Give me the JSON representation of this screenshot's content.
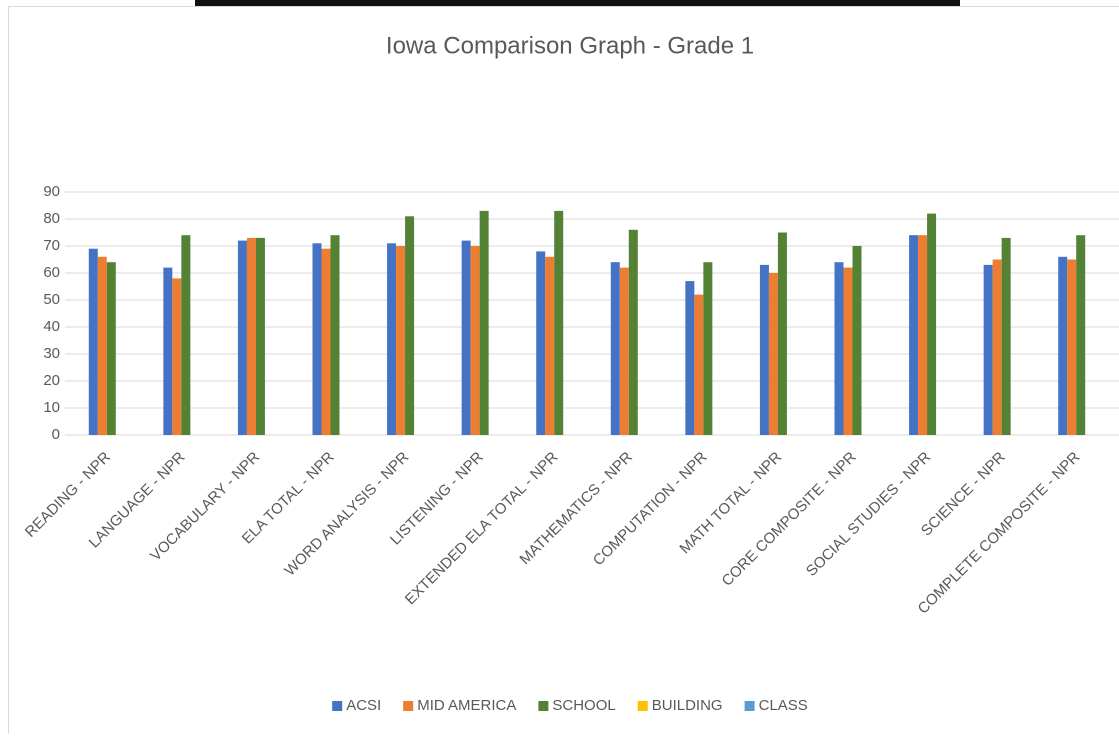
{
  "chart_data": {
    "type": "bar",
    "title": "Iowa Comparison Graph - Grade 1",
    "categories": [
      "READING - NPR",
      "LANGUAGE - NPR",
      "VOCABULARY - NPR",
      "ELA TOTAL - NPR",
      "WORD ANALYSIS - NPR",
      "LISTENING - NPR",
      "EXTENDED ELA TOTAL - NPR",
      "MATHEMATICS - NPR",
      "COMPUTATION - NPR",
      "MATH TOTAL - NPR",
      "CORE COMPOSITE - NPR",
      "SOCIAL STUDIES - NPR",
      "SCIENCE - NPR",
      "COMPLETE COMPOSITE - NPR"
    ],
    "series": [
      {
        "name": "ACSI",
        "color": "#4472c4",
        "values": [
          69,
          62,
          72,
          71,
          71,
          72,
          68,
          64,
          57,
          63,
          64,
          74,
          63,
          66
        ]
      },
      {
        "name": "MID AMERICA",
        "color": "#ed7d31",
        "values": [
          66,
          58,
          73,
          69,
          70,
          70,
          66,
          62,
          52,
          60,
          62,
          74,
          65,
          65
        ]
      },
      {
        "name": "SCHOOL",
        "color": "#548235",
        "values": [
          64,
          74,
          73,
          74,
          81,
          83,
          83,
          76,
          64,
          75,
          70,
          82,
          73,
          74
        ]
      },
      {
        "name": "BUILDING",
        "color": "#ffc000",
        "values": [
          null,
          null,
          null,
          null,
          null,
          null,
          null,
          null,
          null,
          null,
          null,
          null,
          null,
          null
        ]
      },
      {
        "name": "CLASS",
        "color": "#5b9bd5",
        "values": [
          null,
          null,
          null,
          null,
          null,
          null,
          null,
          null,
          null,
          null,
          null,
          null,
          null,
          null
        ]
      }
    ],
    "ylim": [
      0,
      90
    ],
    "yticks": [
      0,
      10,
      20,
      30,
      40,
      50,
      60,
      70,
      80,
      90
    ],
    "grid": true,
    "legend": "bottom"
  }
}
